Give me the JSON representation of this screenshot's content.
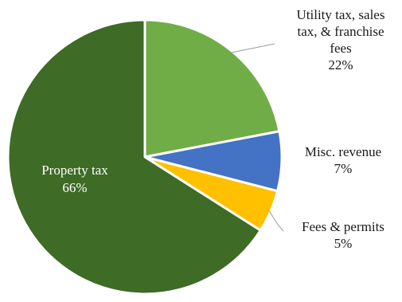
{
  "chart_data": {
    "type": "pie",
    "title": "",
    "slices": [
      {
        "label_lines": [
          "Utility tax, sales",
          "tax, & franchise",
          "fees"
        ],
        "percent_label": "22%",
        "value": 22,
        "color": "#70ad47"
      },
      {
        "label_lines": [
          "Misc. revenue"
        ],
        "percent_label": "7%",
        "value": 7,
        "color": "#4472c4"
      },
      {
        "label_lines": [
          "Fees & permits"
        ],
        "percent_label": "5%",
        "value": 5,
        "color": "#ffc000"
      },
      {
        "label_lines": [
          "Property tax"
        ],
        "percent_label": "66%",
        "value": 66,
        "color": "#3e6b26"
      }
    ]
  }
}
